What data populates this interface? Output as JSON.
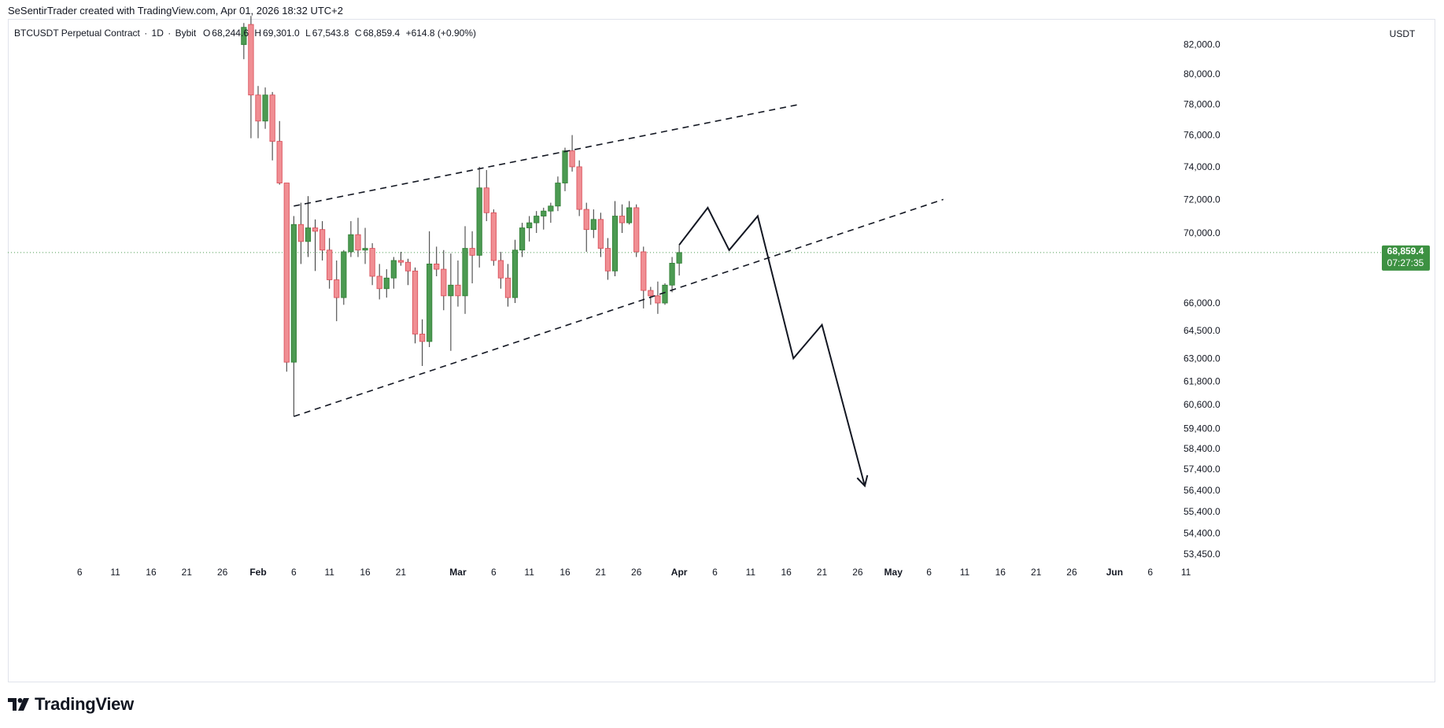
{
  "header": {
    "credit": "SeSentirTrader created with TradingView.com, Apr 01, 2026 18:32 UTC+2"
  },
  "symbol": {
    "name": "BTCUSDT Perpetual Contract",
    "interval": "1D",
    "exchange": "Bybit",
    "open_label": "O",
    "open": "68,244.6",
    "high_label": "H",
    "high": "69,301.0",
    "low_label": "L",
    "low": "67,543.8",
    "close_label": "C",
    "close": "68,859.4",
    "change": "+614.8 (+0.90%)"
  },
  "price_axis": {
    "currency": "USDT",
    "current_price": "68,859.4",
    "countdown": "07:27:35"
  },
  "footer": {
    "brand": "TradingView"
  },
  "colors": {
    "up": "#4c9a52",
    "down": "#f08e93",
    "up_stroke": "#2e7d32",
    "down_stroke": "#d84a55",
    "label_bg": "#3d9142"
  },
  "chart_data": {
    "type": "candlestick",
    "title": "BTCUSDT Perpetual Contract · 1D · Bybit",
    "ylabel": "USDT",
    "y_ticks": [
      82000,
      80000,
      78000,
      76000,
      74000,
      72000,
      70000,
      66000,
      64500,
      63000,
      61800,
      60600,
      59400,
      58400,
      57400,
      56400,
      55400,
      54400,
      53450
    ],
    "y_tick_labels": [
      "82,000.0",
      "80,000.0",
      "78,000.0",
      "76,000.0",
      "74,000.0",
      "72,000.0",
      "70,000.0",
      "66,000.0",
      "64,500.0",
      "63,000.0",
      "61,800.0",
      "60,600.0",
      "59,400.0",
      "58,400.0",
      "57,400.0",
      "56,400.0",
      "55,400.0",
      "54,400.0",
      "53,450.0"
    ],
    "x_ticks": [
      {
        "day": -25,
        "label": "6"
      },
      {
        "day": -20,
        "label": "11"
      },
      {
        "day": -15,
        "label": "16"
      },
      {
        "day": -10,
        "label": "21"
      },
      {
        "day": -5,
        "label": "26"
      },
      {
        "day": 0,
        "label": "Feb",
        "month": true
      },
      {
        "day": 5,
        "label": "6"
      },
      {
        "day": 10,
        "label": "11"
      },
      {
        "day": 15,
        "label": "16"
      },
      {
        "day": 20,
        "label": "21"
      },
      {
        "day": 28,
        "label": "Mar",
        "month": true
      },
      {
        "day": 33,
        "label": "6"
      },
      {
        "day": 38,
        "label": "11"
      },
      {
        "day": 43,
        "label": "16"
      },
      {
        "day": 48,
        "label": "21"
      },
      {
        "day": 53,
        "label": "26"
      },
      {
        "day": 59,
        "label": "Apr",
        "month": true
      },
      {
        "day": 64,
        "label": "6"
      },
      {
        "day": 69,
        "label": "11"
      },
      {
        "day": 74,
        "label": "16"
      },
      {
        "day": 79,
        "label": "21"
      },
      {
        "day": 84,
        "label": "26"
      },
      {
        "day": 89,
        "label": "May",
        "month": true
      },
      {
        "day": 94,
        "label": "6"
      },
      {
        "day": 99,
        "label": "11"
      },
      {
        "day": 104,
        "label": "16"
      },
      {
        "day": 109,
        "label": "21"
      },
      {
        "day": 114,
        "label": "26"
      },
      {
        "day": 120,
        "label": "Jun",
        "month": true
      },
      {
        "day": 125,
        "label": "6"
      },
      {
        "day": 130,
        "label": "11"
      }
    ],
    "candles": [
      {
        "d": -2,
        "o": 82000,
        "h": 83500,
        "l": 81000,
        "c": 83200
      },
      {
        "d": -1,
        "o": 83400,
        "h": 84000,
        "l": 75800,
        "c": 78600
      },
      {
        "d": 0,
        "o": 78600,
        "h": 79200,
        "l": 75800,
        "c": 76900
      },
      {
        "d": 1,
        "o": 76900,
        "h": 79100,
        "l": 76400,
        "c": 78600
      },
      {
        "d": 2,
        "o": 78600,
        "h": 78800,
        "l": 74400,
        "c": 75600
      },
      {
        "d": 3,
        "o": 75600,
        "h": 76900,
        "l": 72900,
        "c": 73000
      },
      {
        "d": 4,
        "o": 73000,
        "h": 73000,
        "l": 62300,
        "c": 62800
      },
      {
        "d": 5,
        "o": 62800,
        "h": 71000,
        "l": 60000,
        "c": 70500
      },
      {
        "d": 6,
        "o": 70500,
        "h": 71800,
        "l": 68200,
        "c": 69500
      },
      {
        "d": 7,
        "o": 69500,
        "h": 72200,
        "l": 68600,
        "c": 70300
      },
      {
        "d": 8,
        "o": 70300,
        "h": 70800,
        "l": 67800,
        "c": 70100
      },
      {
        "d": 9,
        "o": 70200,
        "h": 70700,
        "l": 68400,
        "c": 69000
      },
      {
        "d": 10,
        "o": 69000,
        "h": 69700,
        "l": 66800,
        "c": 67300
      },
      {
        "d": 11,
        "o": 67300,
        "h": 68400,
        "l": 65000,
        "c": 66300
      },
      {
        "d": 12,
        "o": 66300,
        "h": 69000,
        "l": 65900,
        "c": 68900
      },
      {
        "d": 13,
        "o": 68900,
        "h": 70700,
        "l": 68600,
        "c": 69900
      },
      {
        "d": 14,
        "o": 69900,
        "h": 70900,
        "l": 68600,
        "c": 69000
      },
      {
        "d": 15,
        "o": 69000,
        "h": 70300,
        "l": 68200,
        "c": 69100
      },
      {
        "d": 16,
        "o": 69100,
        "h": 69400,
        "l": 67000,
        "c": 67500
      },
      {
        "d": 17,
        "o": 67500,
        "h": 68200,
        "l": 66200,
        "c": 66800
      },
      {
        "d": 18,
        "o": 66800,
        "h": 67900,
        "l": 66300,
        "c": 67400
      },
      {
        "d": 19,
        "o": 67400,
        "h": 68600,
        "l": 66800,
        "c": 68400
      },
      {
        "d": 20,
        "o": 68400,
        "h": 68900,
        "l": 68100,
        "c": 68300
      },
      {
        "d": 21,
        "o": 68300,
        "h": 68500,
        "l": 67000,
        "c": 67800
      },
      {
        "d": 22,
        "o": 67800,
        "h": 68000,
        "l": 63800,
        "c": 64300
      },
      {
        "d": 23,
        "o": 64300,
        "h": 65100,
        "l": 62600,
        "c": 63900
      },
      {
        "d": 24,
        "o": 63900,
        "h": 70100,
        "l": 63600,
        "c": 68200
      },
      {
        "d": 25,
        "o": 68200,
        "h": 69200,
        "l": 67500,
        "c": 67900
      },
      {
        "d": 26,
        "o": 67900,
        "h": 69000,
        "l": 65600,
        "c": 66400
      },
      {
        "d": 27,
        "o": 66400,
        "h": 68800,
        "l": 63400,
        "c": 67000
      },
      {
        "d": 28,
        "o": 67000,
        "h": 68400,
        "l": 65800,
        "c": 66400
      },
      {
        "d": 29,
        "o": 66400,
        "h": 70400,
        "l": 65400,
        "c": 69100
      },
      {
        "d": 30,
        "o": 69100,
        "h": 70100,
        "l": 67100,
        "c": 68700
      },
      {
        "d": 31,
        "o": 68700,
        "h": 74000,
        "l": 68000,
        "c": 72700
      },
      {
        "d": 32,
        "o": 72700,
        "h": 73800,
        "l": 70700,
        "c": 71200
      },
      {
        "d": 33,
        "o": 71200,
        "h": 71400,
        "l": 68100,
        "c": 68400
      },
      {
        "d": 34,
        "o": 68400,
        "h": 68900,
        "l": 66800,
        "c": 67400
      },
      {
        "d": 35,
        "o": 67400,
        "h": 68200,
        "l": 65800,
        "c": 66300
      },
      {
        "d": 36,
        "o": 66300,
        "h": 69600,
        "l": 66000,
        "c": 69000
      },
      {
        "d": 37,
        "o": 69000,
        "h": 70600,
        "l": 68600,
        "c": 70300
      },
      {
        "d": 38,
        "o": 70300,
        "h": 71000,
        "l": 69500,
        "c": 70600
      },
      {
        "d": 39,
        "o": 70600,
        "h": 71300,
        "l": 70000,
        "c": 71000
      },
      {
        "d": 40,
        "o": 71000,
        "h": 71500,
        "l": 70200,
        "c": 71300
      },
      {
        "d": 41,
        "o": 71300,
        "h": 71800,
        "l": 70600,
        "c": 71600
      },
      {
        "d": 42,
        "o": 71600,
        "h": 73400,
        "l": 71300,
        "c": 73000
      },
      {
        "d": 43,
        "o": 73000,
        "h": 75200,
        "l": 72500,
        "c": 75000
      },
      {
        "d": 44,
        "o": 75000,
        "h": 76000,
        "l": 73700,
        "c": 74000
      },
      {
        "d": 45,
        "o": 74000,
        "h": 74400,
        "l": 71000,
        "c": 71400
      },
      {
        "d": 46,
        "o": 71400,
        "h": 71800,
        "l": 68900,
        "c": 70200
      },
      {
        "d": 47,
        "o": 70200,
        "h": 71400,
        "l": 69700,
        "c": 70800
      },
      {
        "d": 48,
        "o": 70800,
        "h": 71200,
        "l": 68600,
        "c": 69100
      },
      {
        "d": 49,
        "o": 69100,
        "h": 69700,
        "l": 67300,
        "c": 67800
      },
      {
        "d": 50,
        "o": 67800,
        "h": 71900,
        "l": 67500,
        "c": 71000
      },
      {
        "d": 51,
        "o": 71000,
        "h": 71700,
        "l": 70000,
        "c": 70600
      },
      {
        "d": 52,
        "o": 70600,
        "h": 71900,
        "l": 70500,
        "c": 71500
      },
      {
        "d": 53,
        "o": 71500,
        "h": 71700,
        "l": 68600,
        "c": 68900
      },
      {
        "d": 54,
        "o": 68900,
        "h": 69200,
        "l": 65700,
        "c": 66700
      },
      {
        "d": 55,
        "o": 66700,
        "h": 66900,
        "l": 65900,
        "c": 66400
      },
      {
        "d": 56,
        "o": 66400,
        "h": 67200,
        "l": 65400,
        "c": 66000
      },
      {
        "d": 57,
        "o": 66000,
        "h": 67100,
        "l": 65900,
        "c": 67000
      },
      {
        "d": 58,
        "o": 67000,
        "h": 68600,
        "l": 66600,
        "c": 68244.6
      },
      {
        "d": 59,
        "o": 68244.6,
        "h": 69301,
        "l": 67543.8,
        "c": 68859.4
      }
    ],
    "trendlines": [
      {
        "name": "upper-wedge-line",
        "style": "dashed",
        "points": [
          [
            5,
            71600
          ],
          [
            76,
            78000
          ]
        ]
      },
      {
        "name": "lower-wedge-line",
        "style": "dashed",
        "points": [
          [
            5,
            60000
          ],
          [
            96,
            72000
          ]
        ]
      }
    ],
    "projection_path": [
      [
        59,
        69300
      ],
      [
        63,
        71500
      ],
      [
        66,
        69000
      ],
      [
        70,
        71000
      ],
      [
        75,
        63000
      ],
      [
        79,
        64800
      ],
      [
        85,
        56600
      ]
    ],
    "current_price": 68859.4
  }
}
